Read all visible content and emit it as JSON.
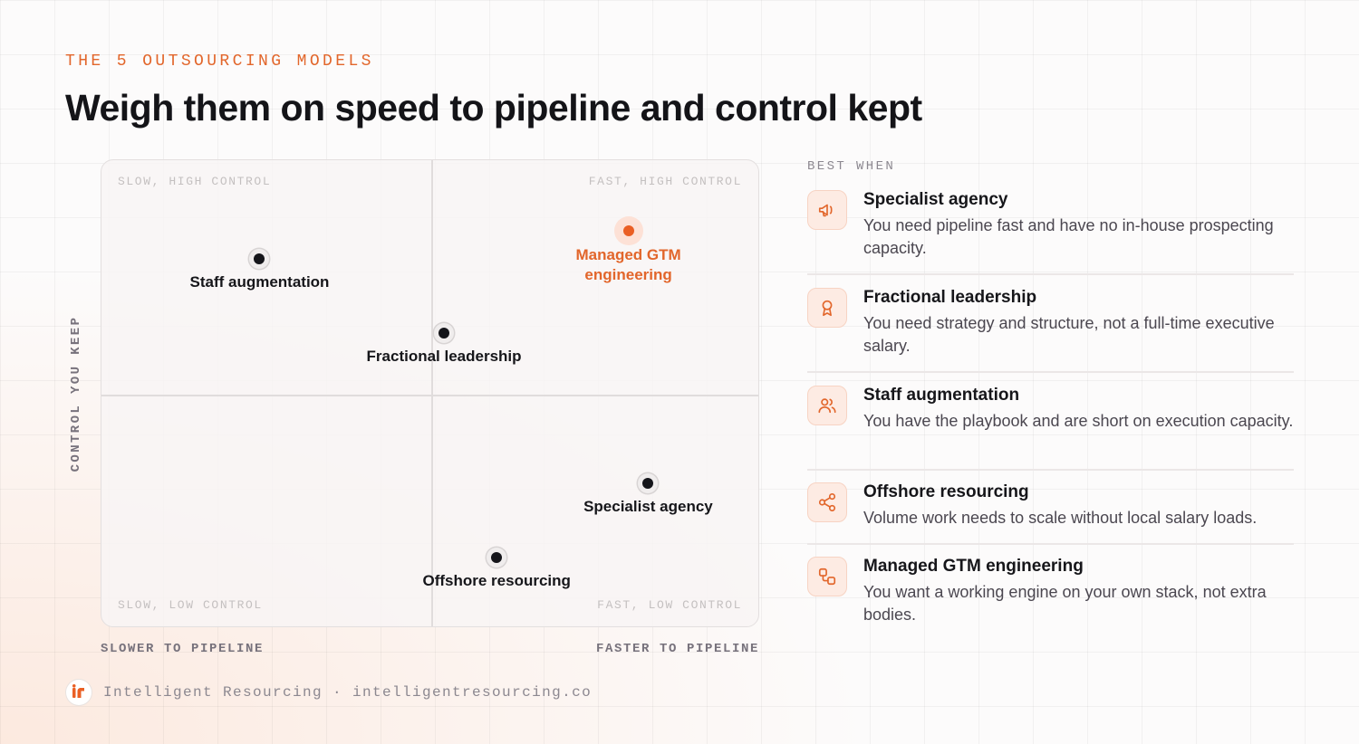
{
  "header": {
    "eyebrow": "THE 5 OUTSOURCING MODELS",
    "title": "Weigh them on speed to pipeline and control kept"
  },
  "chart": {
    "quadrants": {
      "top_left": "SLOW, HIGH CONTROL",
      "top_right": "FAST, HIGH CONTROL",
      "bottom_left": "SLOW, LOW CONTROL",
      "bottom_right": "FAST, LOW CONTROL"
    },
    "y_axis_label": "CONTROL YOU KEEP",
    "x_axis_left": "SLOWER TO PIPELINE",
    "x_axis_right": "FASTER TO PIPELINE",
    "highlight_color": "#ea5f24"
  },
  "chart_data": {
    "type": "scatter",
    "xlabel": "",
    "ylabel": "CONTROL YOU KEEP",
    "xlim": [
      0,
      1
    ],
    "ylim": [
      0,
      1
    ],
    "points": [
      {
        "label": "Staff augmentation",
        "x": 0.24,
        "y": 0.79,
        "highlight": false
      },
      {
        "label": "Managed GTM engineering",
        "x": 0.8,
        "y": 0.85,
        "highlight": true
      },
      {
        "label": "Fractional leadership",
        "x": 0.52,
        "y": 0.63,
        "highlight": false
      },
      {
        "label": "Specialist agency",
        "x": 0.83,
        "y": 0.31,
        "highlight": false
      },
      {
        "label": "Offshore resourcing",
        "x": 0.6,
        "y": 0.15,
        "highlight": false
      }
    ]
  },
  "best_when": {
    "heading": "BEST WHEN",
    "items": [
      {
        "name": "Specialist agency",
        "desc": "You need pipeline fast and have no in-house prospecting capacity.",
        "icon": "megaphone-icon"
      },
      {
        "name": "Fractional leadership",
        "desc": "You need strategy and structure, not a full-time executive salary.",
        "icon": "award-icon"
      },
      {
        "name": "Staff augmentation",
        "desc": "You have the playbook and are short on execution capacity.",
        "icon": "users-icon"
      },
      {
        "name": "Offshore resourcing",
        "desc": "Volume work needs to scale without local salary loads.",
        "icon": "share-icon"
      },
      {
        "name": "Managed GTM engineering",
        "desc": "You want a working engine on your own stack, not extra bodies.",
        "icon": "workflow-icon"
      }
    ]
  },
  "footer": {
    "text": "Intelligent Resourcing · intelligentresourcing.co"
  }
}
